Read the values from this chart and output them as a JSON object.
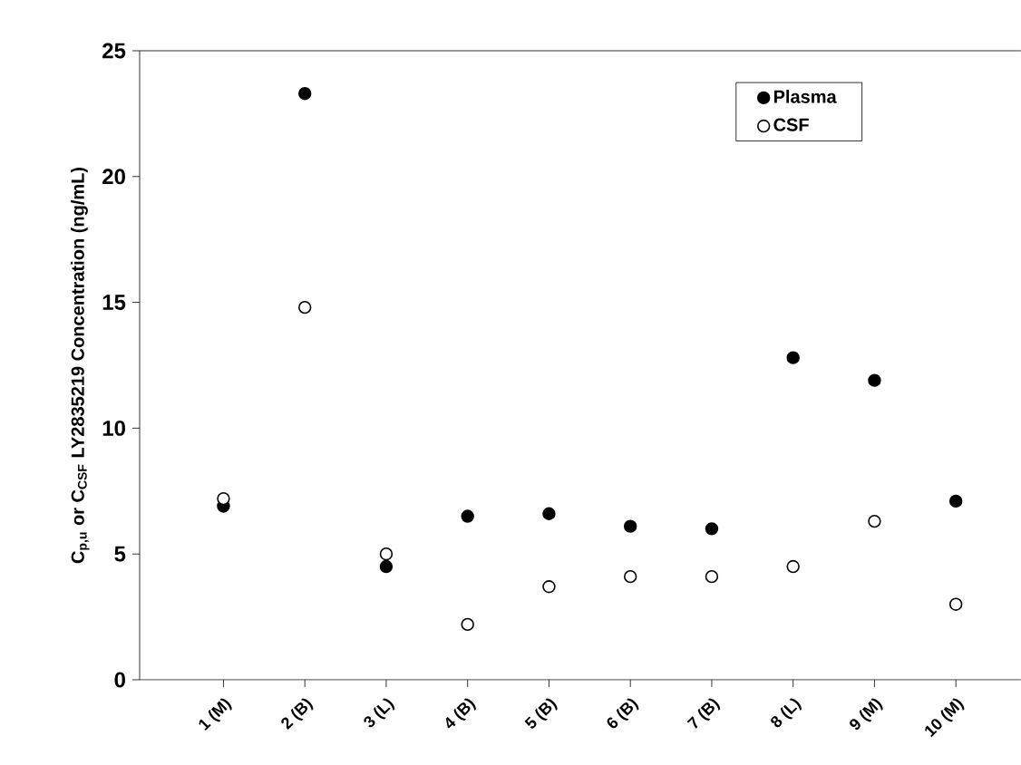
{
  "chart_data": {
    "type": "scatter",
    "ylabel": "C$_{p,u}$ or C$_{CSF}$ LY2835219 Concentration (ng/mL)",
    "categories": [
      "1 (M)",
      "2 (B)",
      "3 (L)",
      "4 (B)",
      "5 (B)",
      "6 (B)",
      "7 (B)",
      "8 (L)",
      "9 (M)",
      "10 (M)"
    ],
    "series": [
      {
        "name": "Plasma",
        "color": "#000000",
        "values": [
          6.9,
          23.3,
          4.5,
          6.5,
          6.6,
          6.1,
          6.0,
          12.8,
          11.9,
          7.1
        ]
      },
      {
        "name": "CSF",
        "color": "#ffffff",
        "values": [
          7.2,
          14.8,
          5.0,
          2.2,
          3.7,
          4.1,
          4.1,
          4.5,
          6.3,
          3.0
        ]
      }
    ],
    "ylim": [
      0,
      25
    ],
    "yticks": [
      0,
      5,
      10,
      15,
      20,
      25
    ],
    "legend": "top right",
    "marker": "circle",
    "grid": false
  }
}
